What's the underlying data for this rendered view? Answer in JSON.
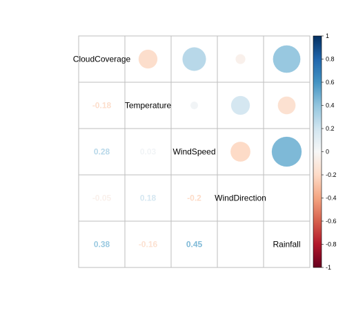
{
  "chart_data": {
    "type": "heatmap",
    "variables": [
      "CloudCoverage",
      "Temperature",
      "WindSpeed",
      "WindDirection",
      "Rainfall"
    ],
    "matrix": [
      [
        1.0,
        -0.18,
        0.28,
        -0.05,
        0.38
      ],
      [
        -0.18,
        1.0,
        0.03,
        0.18,
        -0.16
      ],
      [
        0.28,
        0.03,
        1.0,
        -0.2,
        0.45
      ],
      [
        -0.05,
        0.18,
        -0.2,
        1.0,
        0.0
      ],
      [
        0.38,
        -0.16,
        0.45,
        0.0,
        1.0
      ]
    ],
    "upper_method": "circle",
    "lower_method": "number",
    "lower_labels": [
      {
        "row": 1,
        "col": 0,
        "text": "-0.18"
      },
      {
        "row": 2,
        "col": 0,
        "text": "0.28"
      },
      {
        "row": 2,
        "col": 1,
        "text": "0.03"
      },
      {
        "row": 3,
        "col": 0,
        "text": "-0.05"
      },
      {
        "row": 3,
        "col": 1,
        "text": "0.18"
      },
      {
        "row": 3,
        "col": 2,
        "text": "-0.2"
      },
      {
        "row": 4,
        "col": 0,
        "text": "0.38"
      },
      {
        "row": 4,
        "col": 1,
        "text": "-0.16"
      },
      {
        "row": 4,
        "col": 2,
        "text": "0.45"
      }
    ],
    "colorbar": {
      "range": [
        -1,
        1
      ],
      "ticks": [
        "1",
        "0.8",
        "0.6",
        "0.4",
        "0.2",
        "0",
        "-0.2",
        "-0.4",
        "-0.6",
        "-0.8",
        "-1"
      ]
    },
    "colors": {
      "negative_end": "#67001f",
      "neutral": "#f7f7f7",
      "positive_end": "#053061",
      "grid": "#bebebe"
    }
  }
}
